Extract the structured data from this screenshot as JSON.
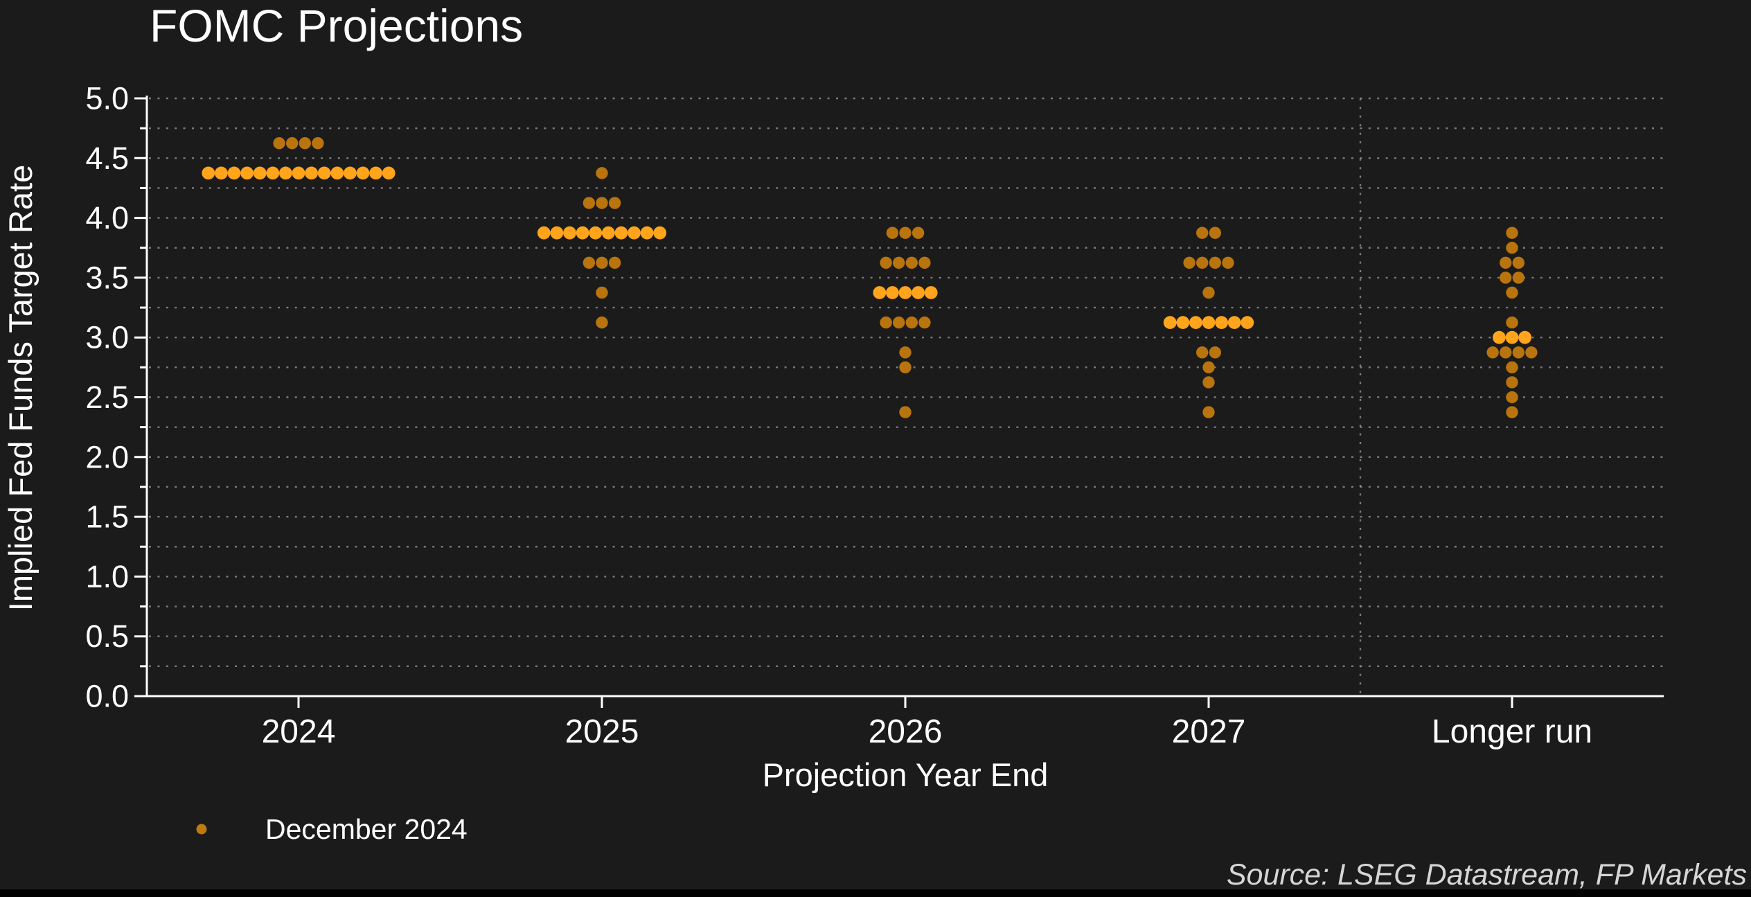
{
  "title": "FOMC Projections",
  "legend": {
    "label": "December 2024"
  },
  "source_note": "Source: LSEG Datastream, FP Markets",
  "colors": {
    "background": "#1b1b1b",
    "text": "#ffffff",
    "grid": "#8e8e8e",
    "axis": "#ffffff",
    "dot": "#b9740e",
    "dot_median": "#ffa41b",
    "legend_marker": "#bf7a10",
    "source_text": "#d6d6d6",
    "bottom_bar": "#000000"
  },
  "chart_data": {
    "type": "scatter",
    "subtype": "fomc-dot-plot",
    "title": "FOMC Projections",
    "xlabel": "Projection Year End",
    "ylabel": "Implied Fed Funds Target Rate",
    "legend_position": "bottom-left",
    "grid": "dotted-horizontal",
    "grid_step": 0.25,
    "ylim": [
      0.0,
      5.0
    ],
    "ytick_values": [
      0.0,
      0.5,
      1.0,
      1.5,
      2.0,
      2.5,
      3.0,
      3.5,
      4.0,
      4.5,
      5.0
    ],
    "ytick_labels": [
      "0.0",
      "0.5",
      "1.0",
      "1.5",
      "2.0",
      "2.5",
      "3.0",
      "3.5",
      "4.0",
      "4.5",
      "5.0"
    ],
    "categories": [
      "2024",
      "2025",
      "2026",
      "2027",
      "Longer run"
    ],
    "separator_before_category": "Longer run",
    "series": [
      {
        "name": "December 2024",
        "clusters": [
          {
            "category": "2024",
            "dots": [
              {
                "rate": 4.625,
                "count": 4
              },
              {
                "rate": 4.375,
                "count": 15,
                "median": true
              }
            ]
          },
          {
            "category": "2025",
            "dots": [
              {
                "rate": 4.375,
                "count": 1
              },
              {
                "rate": 4.125,
                "count": 3
              },
              {
                "rate": 3.875,
                "count": 10,
                "median": true
              },
              {
                "rate": 3.625,
                "count": 3
              },
              {
                "rate": 3.375,
                "count": 1
              },
              {
                "rate": 3.125,
                "count": 1
              }
            ]
          },
          {
            "category": "2026",
            "dots": [
              {
                "rate": 3.875,
                "count": 3
              },
              {
                "rate": 3.625,
                "count": 4
              },
              {
                "rate": 3.375,
                "count": 5,
                "median": true
              },
              {
                "rate": 3.125,
                "count": 4
              },
              {
                "rate": 2.875,
                "count": 1
              },
              {
                "rate": 2.75,
                "count": 1
              },
              {
                "rate": 2.375,
                "count": 1
              }
            ]
          },
          {
            "category": "2027",
            "dots": [
              {
                "rate": 3.875,
                "count": 2
              },
              {
                "rate": 3.625,
                "count": 4
              },
              {
                "rate": 3.375,
                "count": 1
              },
              {
                "rate": 3.125,
                "count": 7,
                "median": true
              },
              {
                "rate": 2.875,
                "count": 2
              },
              {
                "rate": 2.75,
                "count": 1
              },
              {
                "rate": 2.625,
                "count": 1
              },
              {
                "rate": 2.375,
                "count": 1
              }
            ]
          },
          {
            "category": "Longer run",
            "dots": [
              {
                "rate": 3.875,
                "count": 1
              },
              {
                "rate": 3.75,
                "count": 1
              },
              {
                "rate": 3.625,
                "count": 2
              },
              {
                "rate": 3.5,
                "count": 2
              },
              {
                "rate": 3.375,
                "count": 1
              },
              {
                "rate": 3.125,
                "count": 1
              },
              {
                "rate": 3.0,
                "count": 3,
                "median": true
              },
              {
                "rate": 2.875,
                "count": 4
              },
              {
                "rate": 2.75,
                "count": 1
              },
              {
                "rate": 2.625,
                "count": 1
              },
              {
                "rate": 2.5,
                "count": 1
              },
              {
                "rate": 2.375,
                "count": 1
              }
            ]
          }
        ]
      }
    ]
  }
}
